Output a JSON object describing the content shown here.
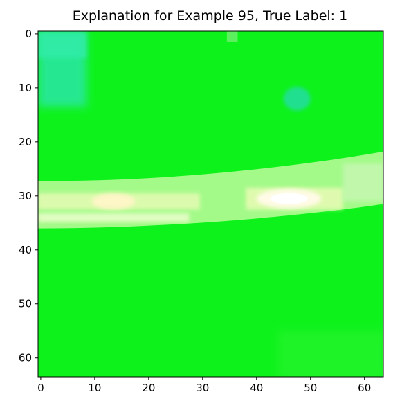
{
  "chart_data": {
    "type": "heatmap",
    "title": "Explanation for Example 95, True Label: 1",
    "xlabel": "",
    "ylabel": "",
    "image_size": [
      64,
      64
    ],
    "xlim": [
      -0.5,
      63.5
    ],
    "ylim": [
      63.5,
      -0.5
    ],
    "x_ticks": [
      0,
      10,
      20,
      30,
      40,
      50,
      60
    ],
    "y_ticks": [
      0,
      10,
      20,
      30,
      40,
      50,
      60
    ],
    "grid": false,
    "colors": {
      "background": "#0ef21c",
      "band": "#b4fb96",
      "highlight": "#fffbe6",
      "cyan_patch": "#2ce6a6",
      "cyan_spot": "#23de9c"
    },
    "features": [
      {
        "name": "horizontal bright band",
        "rows": [
          27,
          36
        ],
        "cols": [
          0,
          63
        ]
      },
      {
        "name": "bright spot left",
        "rows": [
          30,
          32
        ],
        "cols": [
          11,
          17
        ]
      },
      {
        "name": "bright spot right",
        "rows": [
          29,
          32
        ],
        "cols": [
          41,
          51
        ]
      },
      {
        "name": "cyan patch top-left",
        "rows": [
          0,
          13
        ],
        "cols": [
          0,
          8
        ]
      },
      {
        "name": "cyan spot",
        "rows": [
          10,
          14
        ],
        "cols": [
          45,
          50
        ]
      }
    ]
  }
}
